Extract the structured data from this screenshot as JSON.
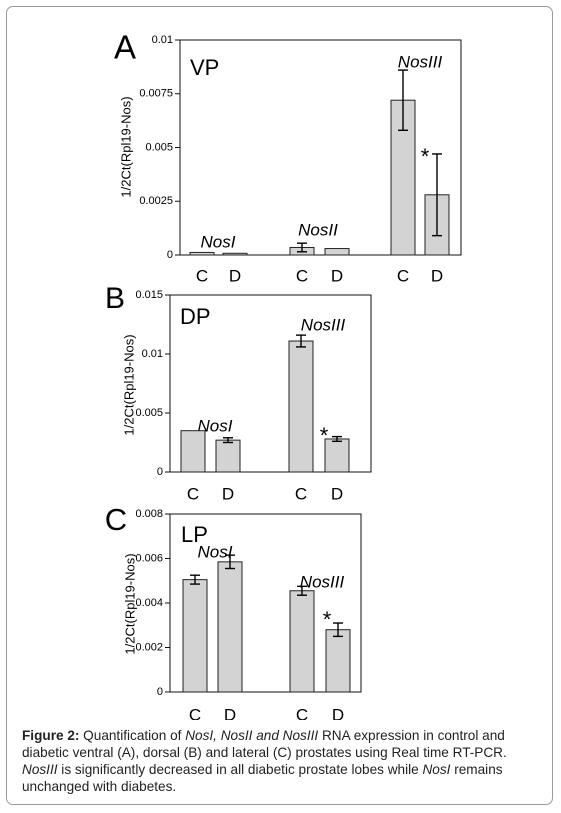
{
  "chart_data": [
    {
      "type": "bar",
      "panel_letter": "A",
      "panel_label": "VP",
      "ylabel": "1/2Ct(Rpl19-Nos)",
      "ylim": [
        0,
        0.01
      ],
      "yticks": [
        "0",
        "0.0025",
        "0.005",
        "0.0075",
        "0.01"
      ],
      "ytick_values": [
        0,
        0.0025,
        0.005,
        0.0075,
        0.01
      ],
      "groups": [
        {
          "name": "NosI",
          "bars": [
            {
              "category": "C",
              "value": 0.00012,
              "error": 0
            },
            {
              "category": "D",
              "value": 8e-05,
              "error": 0
            }
          ]
        },
        {
          "name": "NosII",
          "bars": [
            {
              "category": "C",
              "value": 0.00035,
              "error": 0.0002
            },
            {
              "category": "D",
              "value": 0.0003,
              "error": 0
            }
          ]
        },
        {
          "name": "NosIII",
          "bars": [
            {
              "category": "C",
              "value": 0.0072,
              "error": 0.0014
            },
            {
              "category": "D",
              "value": 0.0028,
              "error": 0.0019,
              "significance": "*"
            }
          ]
        }
      ]
    },
    {
      "type": "bar",
      "panel_letter": "B",
      "panel_label": "DP",
      "ylabel": "1/2Ct(Rpl19-Nos)",
      "ylim": [
        0,
        0.015
      ],
      "yticks": [
        "0",
        "0.005",
        "0.01",
        "0.015"
      ],
      "ytick_values": [
        0,
        0.005,
        0.01,
        0.015
      ],
      "groups": [
        {
          "name": "NosI",
          "bars": [
            {
              "category": "C",
              "value": 0.0035,
              "error": 0
            },
            {
              "category": "D",
              "value": 0.0027,
              "error": 0.0002
            }
          ]
        },
        {
          "name": "NosIII",
          "bars": [
            {
              "category": "C",
              "value": 0.0111,
              "error": 0.0005
            },
            {
              "category": "D",
              "value": 0.0028,
              "error": 0.0002,
              "significance": "*"
            }
          ]
        }
      ]
    },
    {
      "type": "bar",
      "panel_letter": "C",
      "panel_label": "LP",
      "ylabel": "1/2Ct(Rpl19-Nos)",
      "ylim": [
        0,
        0.008
      ],
      "yticks": [
        "0",
        "0.002",
        "0.004",
        "0.006",
        "0.008"
      ],
      "ytick_values": [
        0,
        0.002,
        0.004,
        0.006,
        0.008
      ],
      "groups": [
        {
          "name": "NosI",
          "bars": [
            {
              "category": "C",
              "value": 0.00505,
              "error": 0.0002
            },
            {
              "category": "D",
              "value": 0.00585,
              "error": 0.0003
            }
          ]
        },
        {
          "name": "NosIII",
          "bars": [
            {
              "category": "C",
              "value": 0.00455,
              "error": 0.0002
            },
            {
              "category": "D",
              "value": 0.0028,
              "error": 0.0003,
              "significance": "*"
            }
          ]
        }
      ]
    }
  ],
  "caption": {
    "label": "Figure 2:",
    "t1": " Quantification of ",
    "i1": "NosI, NosII and NosIII",
    "t2": " RNA expression in control and diabetic ventral (A), dorsal (B) and lateral (C) prostates using Real time RT-PCR. ",
    "i2": "NosIII",
    "t3": " is significantly decreased in all diabetic prostate lobes while ",
    "i3": "NosI",
    "t4": " remains unchanged with diabetes."
  },
  "style": {
    "bar_fill": "#d3d3d3",
    "bar_stroke": "#222222",
    "axis_color": "#111111",
    "frame_color": "#9a9a9a"
  }
}
